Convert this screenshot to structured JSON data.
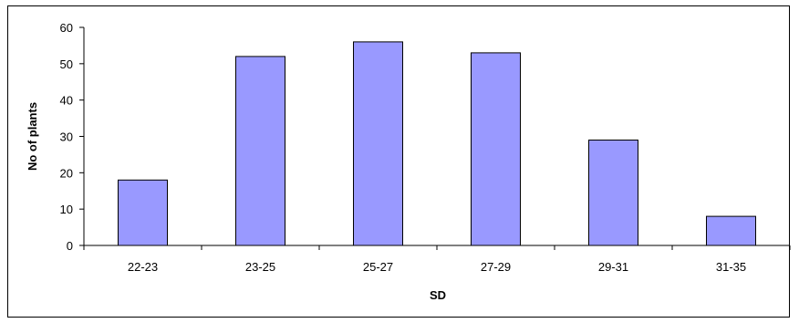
{
  "chart_data": {
    "type": "bar",
    "categories": [
      "22-23",
      "23-25",
      "25-27",
      "27-29",
      "29-31",
      "31-35"
    ],
    "values": [
      18,
      52,
      56,
      53,
      29,
      8
    ],
    "title": "",
    "xlabel": "SD",
    "ylabel": "No of plants",
    "ylim": [
      0,
      60
    ],
    "yticks": [
      0,
      10,
      20,
      30,
      40,
      50,
      60
    ],
    "grid": false,
    "legend": "none",
    "bar_color": "#9999ff",
    "bar_edge_color": "#000000"
  }
}
